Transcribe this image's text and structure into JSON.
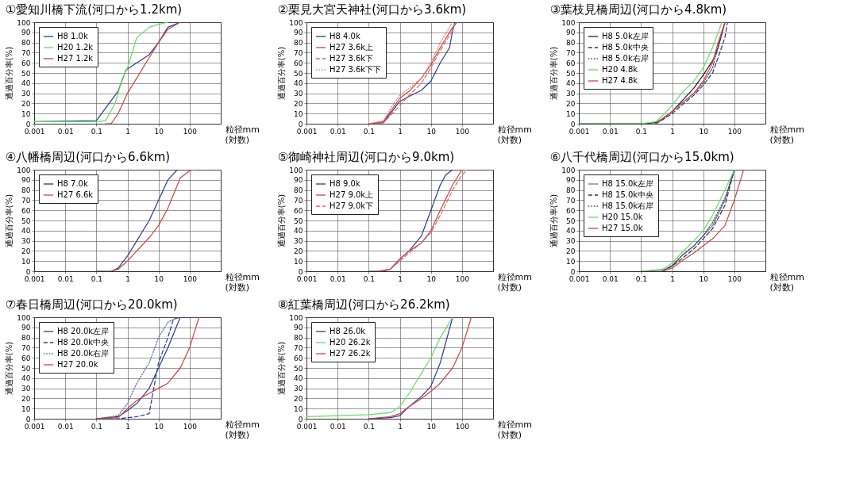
{
  "chart_data": [
    {
      "type": "line",
      "title": "①愛知川橋下流(河口から1.2km)",
      "xlabel": "粒径mm (対数)",
      "ylabel": "通過百分率(%)",
      "log": "x",
      "grid": true,
      "legend": "top left",
      "marker": "none",
      "xlim": [
        0.001,
        1000
      ],
      "xticks": [
        0.001,
        0.01,
        0.1,
        1,
        10,
        100
      ],
      "ylim": [
        0,
        100
      ],
      "yticks": [
        0,
        10,
        20,
        30,
        40,
        50,
        60,
        70,
        80,
        90,
        100
      ],
      "series": [
        {
          "name": "H8 1.0k",
          "color": "#2b3a8c",
          "line_style": "solid",
          "x": [
            0.001,
            0.1,
            0.5,
            0.9,
            2,
            5,
            10,
            20,
            50
          ],
          "values": [
            2,
            3,
            32,
            53,
            60,
            68,
            80,
            95,
            100
          ]
        },
        {
          "name": "H20 1.2k",
          "color": "#66dd66",
          "line_style": "solid",
          "x": [
            0.001,
            0.1,
            0.2,
            0.4,
            0.7,
            1,
            2,
            5,
            10,
            20
          ],
          "values": [
            2,
            2,
            3,
            20,
            45,
            55,
            85,
            95,
            98,
            100
          ]
        },
        {
          "name": "H27 1.2k",
          "color": "#cc4444",
          "line_style": "solid",
          "x": [
            0.2,
            0.3,
            0.5,
            1,
            2,
            5,
            10,
            20,
            50
          ],
          "values": [
            0,
            0,
            10,
            30,
            45,
            65,
            80,
            93,
            100
          ]
        }
      ]
    },
    {
      "type": "line",
      "title": "②栗見大宮天神社(河口から3.6km)",
      "xlabel": "粒径mm (対数)",
      "ylabel": "通過百分率(%)",
      "log": "x",
      "grid": true,
      "legend": "top left",
      "marker": "none",
      "xlim": [
        0.001,
        1000
      ],
      "xticks": [
        0.001,
        0.01,
        0.1,
        1,
        10,
        100
      ],
      "ylim": [
        0,
        100
      ],
      "yticks": [
        0,
        10,
        20,
        30,
        40,
        50,
        60,
        70,
        80,
        90,
        100
      ],
      "series": [
        {
          "name": "H8 4.0k",
          "color": "#2b3a8c",
          "line_style": "solid",
          "x": [
            0.1,
            0.3,
            0.5,
            1,
            2,
            5,
            10,
            20,
            40,
            50,
            60
          ],
          "values": [
            0,
            1,
            10,
            22,
            27,
            33,
            42,
            60,
            75,
            92,
            100
          ]
        },
        {
          "name": "H27 3.6k上",
          "color": "#cc4444",
          "line_style": "solid",
          "x": [
            0.1,
            0.3,
            0.5,
            1,
            2,
            5,
            10,
            20,
            50,
            70
          ],
          "values": [
            0,
            2,
            12,
            25,
            32,
            45,
            58,
            75,
            95,
            100
          ]
        },
        {
          "name": "H27 3.6k下",
          "color": "#dd6666",
          "line_style": "dashed",
          "x": [
            0.1,
            0.3,
            0.5,
            1,
            2,
            5,
            10,
            20,
            50,
            60
          ],
          "values": [
            0,
            1,
            8,
            18,
            28,
            40,
            55,
            72,
            92,
            100
          ]
        },
        {
          "name": "H27 3.6k下下",
          "color": "#e08888",
          "line_style": "dotted",
          "x": [
            0.1,
            0.3,
            0.5,
            1,
            2,
            5,
            10,
            20,
            50
          ],
          "values": [
            0,
            3,
            15,
            28,
            35,
            45,
            60,
            80,
            100
          ]
        }
      ]
    },
    {
      "type": "line",
      "title": "③葉枝見橋周辺(河口から4.8km)",
      "xlabel": "粒径mm (対数)",
      "ylabel": "通過百分率(%)",
      "log": "x",
      "grid": true,
      "legend": "top left",
      "marker": "none",
      "xlim": [
        0.001,
        1000
      ],
      "xticks": [
        0.001,
        0.01,
        0.1,
        1,
        10,
        100
      ],
      "ylim": [
        0,
        100
      ],
      "yticks": [
        0,
        10,
        20,
        30,
        40,
        50,
        60,
        70,
        80,
        90,
        100
      ],
      "series": [
        {
          "name": "H8 5.0k左岸",
          "color": "#222233",
          "line_style": "solid",
          "x": [
            0.001,
            0.1,
            0.3,
            0.5,
            1,
            2,
            5,
            10,
            20,
            30,
            50
          ],
          "values": [
            0,
            0,
            1,
            5,
            12,
            22,
            35,
            48,
            62,
            75,
            100
          ]
        },
        {
          "name": "H8 5.0k中央",
          "color": "#333366",
          "line_style": "dashed",
          "x": [
            0.3,
            0.5,
            1,
            2,
            5,
            10,
            20,
            30,
            50,
            60
          ],
          "values": [
            0,
            4,
            10,
            18,
            28,
            38,
            50,
            65,
            85,
            100
          ]
        },
        {
          "name": "H8 5.0k右岸",
          "color": "#444466",
          "line_style": "dotted",
          "x": [
            0.3,
            0.5,
            1,
            2,
            5,
            10,
            20,
            30,
            50
          ],
          "values": [
            0,
            5,
            12,
            20,
            30,
            40,
            55,
            75,
            100
          ]
        },
        {
          "name": "H20 4.8k",
          "color": "#66dd66",
          "line_style": "solid",
          "x": [
            0.001,
            0.1,
            0.3,
            0.5,
            1,
            2,
            5,
            10,
            20,
            40
          ],
          "values": [
            0,
            0,
            2,
            8,
            18,
            30,
            42,
            55,
            75,
            100
          ]
        },
        {
          "name": "H27 4.8k",
          "color": "#cc4444",
          "line_style": "solid",
          "x": [
            0.3,
            0.5,
            1,
            2,
            5,
            10,
            20,
            30,
            50
          ],
          "values": [
            0,
            5,
            12,
            20,
            30,
            42,
            60,
            80,
            100
          ]
        }
      ]
    },
    {
      "type": "line",
      "title": "④八幡橋周辺(河口から6.6km)",
      "xlabel": "粒径mm (対数)",
      "ylabel": "通過百分率(%)",
      "log": "x",
      "grid": true,
      "legend": "top left",
      "marker": "none",
      "xlim": [
        0.001,
        1000
      ],
      "xticks": [
        0.001,
        0.01,
        0.1,
        1,
        10,
        100
      ],
      "ylim": [
        0,
        100
      ],
      "yticks": [
        0,
        10,
        20,
        30,
        40,
        50,
        60,
        70,
        80,
        90,
        100
      ],
      "series": [
        {
          "name": "H8 7.0k",
          "color": "#2b3a8c",
          "line_style": "solid",
          "x": [
            0.1,
            0.3,
            0.5,
            1,
            2,
            5,
            10,
            20,
            40
          ],
          "values": [
            0,
            0,
            3,
            15,
            30,
            50,
            70,
            90,
            100
          ]
        },
        {
          "name": "H27 6.6k",
          "color": "#cc4444",
          "line_style": "solid",
          "x": [
            0.3,
            0.5,
            1,
            2,
            5,
            10,
            20,
            50,
            100,
            150
          ],
          "values": [
            0,
            2,
            10,
            20,
            33,
            45,
            62,
            92,
            99,
            100
          ]
        }
      ]
    },
    {
      "type": "line",
      "title": "⑤御崎神社周辺(河口から9.0km)",
      "xlabel": "粒径mm (対数)",
      "ylabel": "通過百分率(%)",
      "log": "x",
      "grid": true,
      "legend": "top left",
      "marker": "none",
      "xlim": [
        0.001,
        1000
      ],
      "xticks": [
        0.001,
        0.01,
        0.1,
        1,
        10,
        100
      ],
      "ylim": [
        0,
        100
      ],
      "yticks": [
        0,
        10,
        20,
        30,
        40,
        50,
        60,
        70,
        80,
        90,
        100
      ],
      "series": [
        {
          "name": "H8 9.0k",
          "color": "#2b3a8c",
          "line_style": "solid",
          "x": [
            0.1,
            0.3,
            0.5,
            1,
            2,
            5,
            10,
            20,
            30,
            50
          ],
          "values": [
            0,
            0,
            2,
            12,
            20,
            35,
            60,
            85,
            95,
            100
          ]
        },
        {
          "name": "H27 9.0k上",
          "color": "#cc4444",
          "line_style": "solid",
          "x": [
            0.2,
            0.5,
            1,
            2,
            5,
            10,
            20,
            50,
            100,
            150
          ],
          "values": [
            0,
            2,
            12,
            20,
            28,
            40,
            60,
            85,
            100,
            100
          ]
        },
        {
          "name": "H27 9.0k下",
          "color": "#dd6666",
          "line_style": "dashed",
          "x": [
            0.2,
            0.5,
            1,
            2,
            5,
            10,
            20,
            50,
            100,
            150
          ],
          "values": [
            0,
            2,
            10,
            18,
            28,
            38,
            55,
            80,
            95,
            100
          ]
        }
      ]
    },
    {
      "type": "line",
      "title": "⑥八千代橋周辺(河口から15.0km)",
      "xlabel": "粒径mm (対数)",
      "ylabel": "通過百分率(%)",
      "log": "x",
      "grid": true,
      "legend": "top left",
      "marker": "none",
      "xlim": [
        0.001,
        1000
      ],
      "xticks": [
        0.001,
        0.01,
        0.1,
        1,
        10,
        100
      ],
      "ylim": [
        0,
        100
      ],
      "yticks": [
        0,
        10,
        20,
        30,
        40,
        50,
        60,
        70,
        80,
        90,
        100
      ],
      "series": [
        {
          "name": "H8 15.0k左岸",
          "color": "#777777",
          "line_style": "solid",
          "x": [
            0.1,
            0.5,
            1,
            2,
            5,
            10,
            20,
            50,
            80,
            100
          ],
          "values": [
            0,
            1,
            5,
            15,
            25,
            35,
            45,
            70,
            90,
            100
          ]
        },
        {
          "name": "H8 15.0k中央",
          "color": "#333366",
          "line_style": "dashed",
          "x": [
            0.5,
            1,
            2,
            5,
            10,
            20,
            50,
            100
          ],
          "values": [
            0,
            5,
            12,
            22,
            32,
            42,
            65,
            100
          ]
        },
        {
          "name": "H8 15.0k右岸",
          "color": "#444466",
          "line_style": "dotted",
          "x": [
            0.5,
            1,
            2,
            5,
            10,
            20,
            50,
            100
          ],
          "values": [
            0,
            6,
            15,
            25,
            35,
            48,
            72,
            100
          ]
        },
        {
          "name": "H20 15.0k",
          "color": "#66dd66",
          "line_style": "solid",
          "x": [
            0.1,
            0.5,
            1,
            2,
            5,
            10,
            20,
            50,
            100
          ],
          "values": [
            0,
            2,
            8,
            18,
            30,
            40,
            55,
            80,
            100
          ]
        },
        {
          "name": "H27 15.0k",
          "color": "#cc4444",
          "line_style": "solid",
          "x": [
            0.5,
            1,
            2,
            5,
            10,
            20,
            50,
            100,
            200
          ],
          "values": [
            0,
            3,
            10,
            18,
            25,
            32,
            45,
            70,
            100
          ]
        }
      ]
    },
    {
      "type": "line",
      "title": "⑦春日橋周辺(河口から20.0km)",
      "xlabel": "粒径mm (対数)",
      "ylabel": "通過百分率(%)",
      "log": "x",
      "grid": true,
      "legend": "top left",
      "marker": "none",
      "xlim": [
        0.001,
        1000
      ],
      "xticks": [
        0.001,
        0.01,
        0.1,
        1,
        10,
        100
      ],
      "ylim": [
        0,
        100
      ],
      "yticks": [
        0,
        10,
        20,
        30,
        40,
        50,
        60,
        70,
        80,
        90,
        100
      ],
      "series": [
        {
          "name": "H8 20.0k左岸",
          "color": "#2b3a8c",
          "line_style": "solid",
          "x": [
            0.1,
            0.5,
            1,
            2,
            5,
            10,
            20,
            50
          ],
          "values": [
            0,
            2,
            8,
            15,
            30,
            50,
            70,
            100
          ]
        },
        {
          "name": "H8 20.0k中央",
          "color": "#2b3a8c",
          "line_style": "dashed",
          "x": [
            0.1,
            0.5,
            1,
            2,
            5,
            7,
            10,
            20,
            30,
            50
          ],
          "values": [
            0,
            0,
            1,
            2,
            5,
            30,
            55,
            80,
            98,
            100
          ]
        },
        {
          "name": "H8 20.0k右岸",
          "color": "#5566aa",
          "line_style": "dotted",
          "x": [
            0.1,
            0.5,
            1,
            2,
            5,
            10,
            20,
            40
          ],
          "values": [
            0,
            3,
            15,
            35,
            55,
            80,
            95,
            100
          ]
        },
        {
          "name": "H27 20.0k",
          "color": "#cc4444",
          "line_style": "solid",
          "x": [
            0.1,
            0.5,
            1,
            2,
            5,
            10,
            20,
            50,
            100,
            200
          ],
          "values": [
            0,
            1,
            10,
            18,
            25,
            30,
            35,
            50,
            70,
            100
          ]
        }
      ]
    },
    {
      "type": "line",
      "title": "⑧紅葉橋周辺(河口から26.2km)",
      "xlabel": "粒径mm (対数)",
      "ylabel": "通過百分率(%)",
      "log": "x",
      "grid": true,
      "legend": "top left",
      "marker": "none",
      "xlim": [
        0.001,
        1000
      ],
      "xticks": [
        0.001,
        0.01,
        0.1,
        1,
        10,
        100
      ],
      "ylim": [
        0,
        100
      ],
      "yticks": [
        0,
        10,
        20,
        30,
        40,
        50,
        60,
        70,
        80,
        90,
        100
      ],
      "series": [
        {
          "name": "H8 26.0k",
          "color": "#2b3a8c",
          "line_style": "solid",
          "x": [
            0.1,
            0.5,
            1,
            2,
            5,
            10,
            20,
            50
          ],
          "values": [
            0,
            1,
            3,
            12,
            22,
            32,
            55,
            100
          ]
        },
        {
          "name": "H20 26.2k",
          "color": "#66dd66",
          "line_style": "solid",
          "x": [
            0.001,
            0.01,
            0.1,
            0.5,
            1,
            2,
            5,
            10,
            20,
            50
          ],
          "values": [
            2,
            3,
            4,
            6,
            12,
            25,
            45,
            60,
            80,
            100
          ]
        },
        {
          "name": "H27 26.2k",
          "color": "#cc4444",
          "line_style": "solid",
          "x": [
            0.1,
            0.5,
            1,
            2,
            5,
            10,
            20,
            50,
            100,
            200
          ],
          "values": [
            0,
            2,
            5,
            12,
            20,
            27,
            35,
            50,
            70,
            100
          ]
        }
      ]
    }
  ]
}
